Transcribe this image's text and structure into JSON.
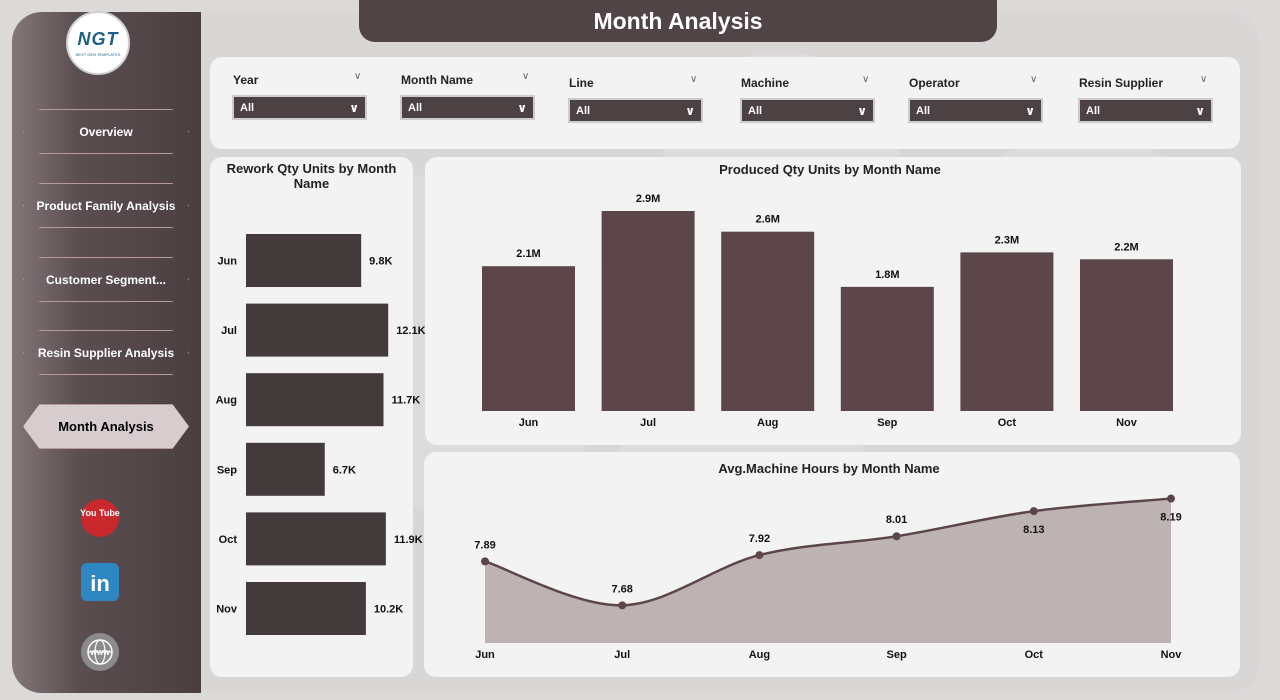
{
  "app": {
    "title": "Month Analysis",
    "logo": {
      "text": "NGT",
      "subtext": "NEXT GEN TEMPLATES"
    }
  },
  "sidebar": {
    "items": [
      {
        "label": "Overview",
        "active": false
      },
      {
        "label": "Product Family Analysis",
        "active": false
      },
      {
        "label": "Customer Segment...",
        "active": false
      },
      {
        "label": "Resin Supplier Analysis",
        "active": false
      },
      {
        "label": "Month Analysis",
        "active": true
      }
    ],
    "social": [
      {
        "icon": "youtube-icon",
        "label": "You Tube"
      },
      {
        "icon": "linkedin-icon",
        "label": "in"
      },
      {
        "icon": "globe-icon",
        "label": "WWW"
      }
    ]
  },
  "filters": [
    {
      "label": "Year",
      "value": "All"
    },
    {
      "label": "Month Name",
      "value": "All"
    },
    {
      "label": "Line",
      "value": "All"
    },
    {
      "label": "Machine",
      "value": "All"
    },
    {
      "label": "Operator",
      "value": "All"
    },
    {
      "label": "Resin Supplier",
      "value": "All"
    }
  ],
  "colors": {
    "bar": "#5c4649",
    "dark_bar": "#433a3c",
    "area": "#b9afaf",
    "line": "#5c4649",
    "title_bar": "#504446"
  },
  "chart_data": [
    {
      "type": "bar",
      "orientation": "horizontal",
      "title": "Rework Qty Units by Month Name",
      "categories": [
        "Jun",
        "Jul",
        "Aug",
        "Sep",
        "Oct",
        "Nov"
      ],
      "values": [
        9800,
        12100,
        11700,
        6700,
        11900,
        10200
      ],
      "labels": [
        "9.8K",
        "12.1K",
        "11.7K",
        "6.7K",
        "11.9K",
        "10.2K"
      ]
    },
    {
      "type": "bar",
      "title": "Produced Qty Units by Month Name",
      "categories": [
        "Jun",
        "Jul",
        "Aug",
        "Sep",
        "Oct",
        "Nov"
      ],
      "values": [
        2100000,
        2900000,
        2600000,
        1800000,
        2300000,
        2200000
      ],
      "labels": [
        "2.1M",
        "2.9M",
        "2.6M",
        "1.8M",
        "2.3M",
        "2.2M"
      ]
    },
    {
      "type": "area",
      "title": "Avg.Machine Hours by Month Name",
      "categories": [
        "Jun",
        "Jul",
        "Aug",
        "Sep",
        "Oct",
        "Nov"
      ],
      "values": [
        7.89,
        7.68,
        7.92,
        8.01,
        8.13,
        8.19
      ],
      "labels": [
        "7.89",
        "7.68",
        "7.92",
        "8.01",
        "8.13",
        "8.19"
      ]
    }
  ]
}
